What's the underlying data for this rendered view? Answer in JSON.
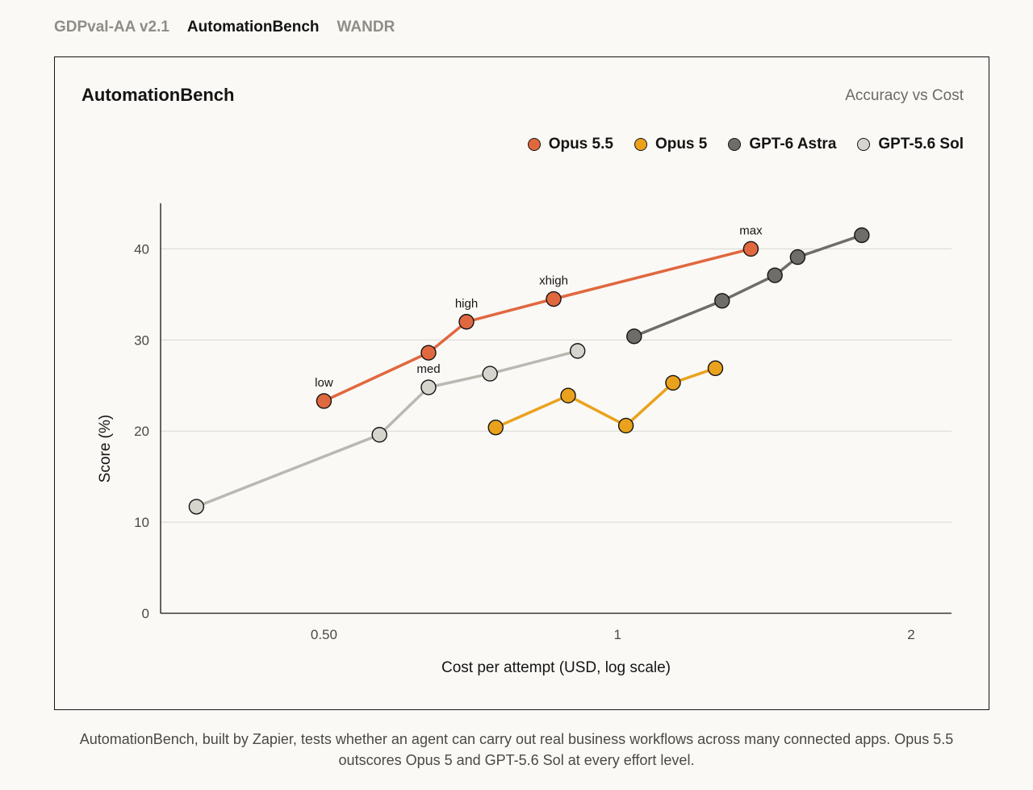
{
  "tabs": [
    {
      "label": "GDPval-AA v2.1",
      "active": false
    },
    {
      "label": "AutomationBench",
      "active": true
    },
    {
      "label": "WANDR",
      "active": false
    }
  ],
  "caption": "AutomationBench, built by Zapier, tests whether an agent can carry out real business workflows across many connected apps. Opus 5.5 outscores Opus 5 and GPT-5.6 Sol at every effort level.",
  "chart_data": {
    "type": "line",
    "title": "AutomationBench",
    "subtitle": "Accuracy vs Cost",
    "xlabel": "Cost per attempt (USD, log scale)",
    "ylabel": "Score (%)",
    "x_scale": "log",
    "xlim": [
      0.34,
      2.2
    ],
    "ylim": [
      0,
      45
    ],
    "x_ticks": [
      {
        "value": 0.5,
        "label": "0.50"
      },
      {
        "value": 1,
        "label": "1"
      },
      {
        "value": 2,
        "label": "2"
      }
    ],
    "y_ticks": [
      {
        "value": 0,
        "label": "0"
      },
      {
        "value": 10,
        "label": "10"
      },
      {
        "value": 20,
        "label": "20"
      },
      {
        "value": 30,
        "label": "30"
      },
      {
        "value": 40,
        "label": "40"
      }
    ],
    "grid": "horizontal",
    "legend_position": "top-right",
    "series": [
      {
        "name": "Opus 5.5",
        "color": "#e0683f",
        "points": [
          {
            "x": 0.5,
            "y": 23.3,
            "label": "low"
          },
          {
            "x": 0.64,
            "y": 28.6
          },
          {
            "x": 0.7,
            "y": 32.0,
            "label": "high"
          },
          {
            "x": 0.86,
            "y": 34.5,
            "label": "xhigh"
          },
          {
            "x": 1.37,
            "y": 40.0,
            "label": "max"
          }
        ]
      },
      {
        "name": "Opus 5",
        "color": "#eaa21d",
        "points": [
          {
            "x": 0.75,
            "y": 20.4
          },
          {
            "x": 0.89,
            "y": 23.9
          },
          {
            "x": 1.02,
            "y": 20.6
          },
          {
            "x": 1.14,
            "y": 25.3
          },
          {
            "x": 1.26,
            "y": 26.9
          }
        ]
      },
      {
        "name": "GPT-6 Astra",
        "color": "#6e6d69",
        "points": [
          {
            "x": 1.04,
            "y": 30.4
          },
          {
            "x": 1.28,
            "y": 34.3
          },
          {
            "x": 1.45,
            "y": 37.1
          },
          {
            "x": 1.53,
            "y": 39.1
          },
          {
            "x": 1.78,
            "y": 41.5
          }
        ]
      },
      {
        "name": "GPT-5.6 Sol",
        "color": "#d6d4cd",
        "line_color": "#bab8b1",
        "points": [
          {
            "x": 0.37,
            "y": 11.7
          },
          {
            "x": 0.57,
            "y": 19.6
          },
          {
            "x": 0.64,
            "y": 24.8,
            "label": "med"
          },
          {
            "x": 0.74,
            "y": 26.3
          },
          {
            "x": 0.91,
            "y": 28.8
          }
        ]
      }
    ]
  }
}
